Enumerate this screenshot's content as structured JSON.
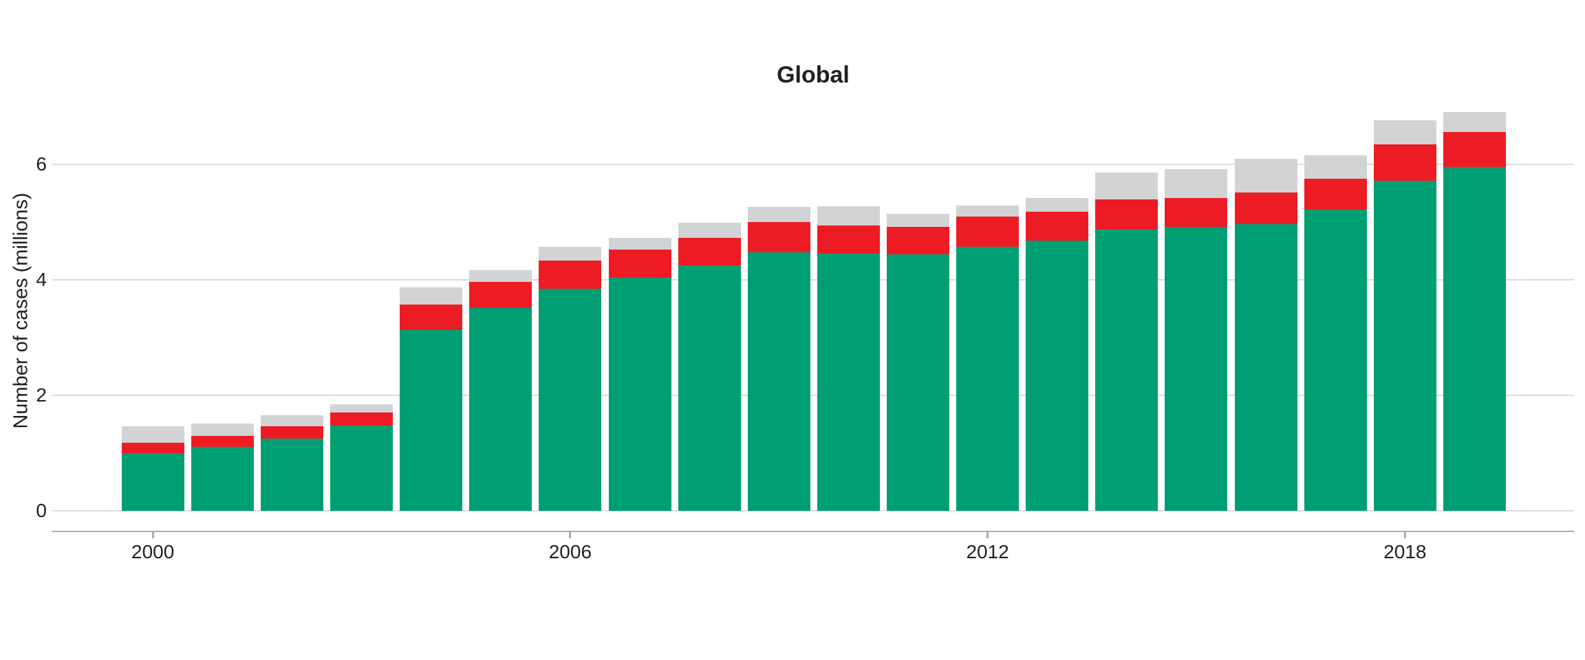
{
  "title": "Global",
  "y_axis": {
    "label": "Number of cases (millions)",
    "tick_labels": [
      "0",
      "2",
      "4",
      "6"
    ],
    "ticks": [
      0,
      2,
      4,
      6
    ]
  },
  "x_axis": {
    "tick_labels": [
      "2000",
      "2006",
      "2012",
      "2018"
    ],
    "tick_years": [
      2000,
      2006,
      2012,
      2018
    ]
  },
  "colors": {
    "green": "#009E73",
    "red": "#ED1C24",
    "gray": "#D1D3D4",
    "gridline": "#DCDCDC",
    "axis_line": "#ABABAB",
    "text": "#231F20",
    "background": "#FFFFFF"
  },
  "chart_data": {
    "type": "bar",
    "stacked": true,
    "title": "Global",
    "xlabel": "",
    "ylabel": "Number of cases (millions)",
    "ylim": [
      0,
      7.2
    ],
    "yticks": [
      0,
      2,
      4,
      6
    ],
    "xticks": [
      2000,
      2006,
      2012,
      2018
    ],
    "grid": true,
    "legend": false,
    "categories": [
      2000,
      2001,
      2002,
      2003,
      2004,
      2005,
      2006,
      2007,
      2008,
      2009,
      2010,
      2011,
      2012,
      2013,
      2014,
      2015,
      2016,
      2017,
      2018,
      2019
    ],
    "series": [
      {
        "name": "green-segment",
        "color_key": "green",
        "values": [
          1.0,
          1.11,
          1.25,
          1.48,
          3.13,
          3.51,
          3.84,
          4.04,
          4.25,
          4.48,
          4.45,
          4.44,
          4.57,
          4.68,
          4.87,
          4.92,
          4.96,
          5.21,
          5.72,
          5.95
        ]
      },
      {
        "name": "red-segment",
        "color_key": "red",
        "values": [
          0.18,
          0.19,
          0.21,
          0.22,
          0.44,
          0.46,
          0.49,
          0.48,
          0.48,
          0.52,
          0.49,
          0.48,
          0.52,
          0.5,
          0.52,
          0.5,
          0.55,
          0.54,
          0.63,
          0.61
        ]
      },
      {
        "name": "gray-segment",
        "color_key": "gray",
        "values": [
          0.28,
          0.21,
          0.2,
          0.15,
          0.3,
          0.2,
          0.24,
          0.21,
          0.26,
          0.26,
          0.33,
          0.22,
          0.19,
          0.24,
          0.47,
          0.5,
          0.59,
          0.41,
          0.41,
          0.35
        ]
      }
    ],
    "totals": [
      1.46,
      1.51,
      1.66,
      1.85,
      3.87,
      4.17,
      4.57,
      4.73,
      4.99,
      5.26,
      5.27,
      5.14,
      5.28,
      5.42,
      5.86,
      5.92,
      6.1,
      6.16,
      6.76,
      6.91
    ]
  }
}
